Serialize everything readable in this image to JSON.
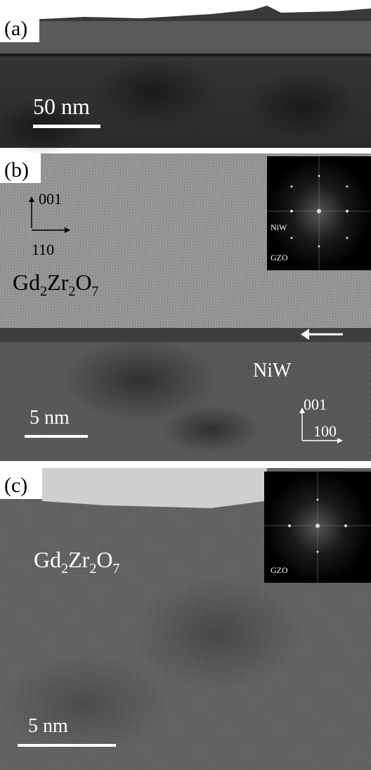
{
  "panels": [
    {
      "label": "(a)",
      "scale_bar": "50 nm"
    },
    {
      "label": "(b)",
      "scale_bar": "5 nm",
      "gzo_axes": {
        "up": "001",
        "right": "110"
      },
      "film": [
        "Gd",
        "2",
        "Zr",
        "2",
        "O",
        "7"
      ],
      "substrate": "NiW",
      "niw_axes": {
        "up": "001",
        "right": "100"
      },
      "inset": {
        "spot_1": "NiW",
        "spot_2": "GZO"
      }
    },
    {
      "label": "(c)",
      "scale_bar": "5 nm",
      "film": [
        "Gd",
        "2",
        "Zr",
        "2",
        "O",
        "7"
      ],
      "inset": {
        "spot_1": "GZO"
      }
    }
  ]
}
